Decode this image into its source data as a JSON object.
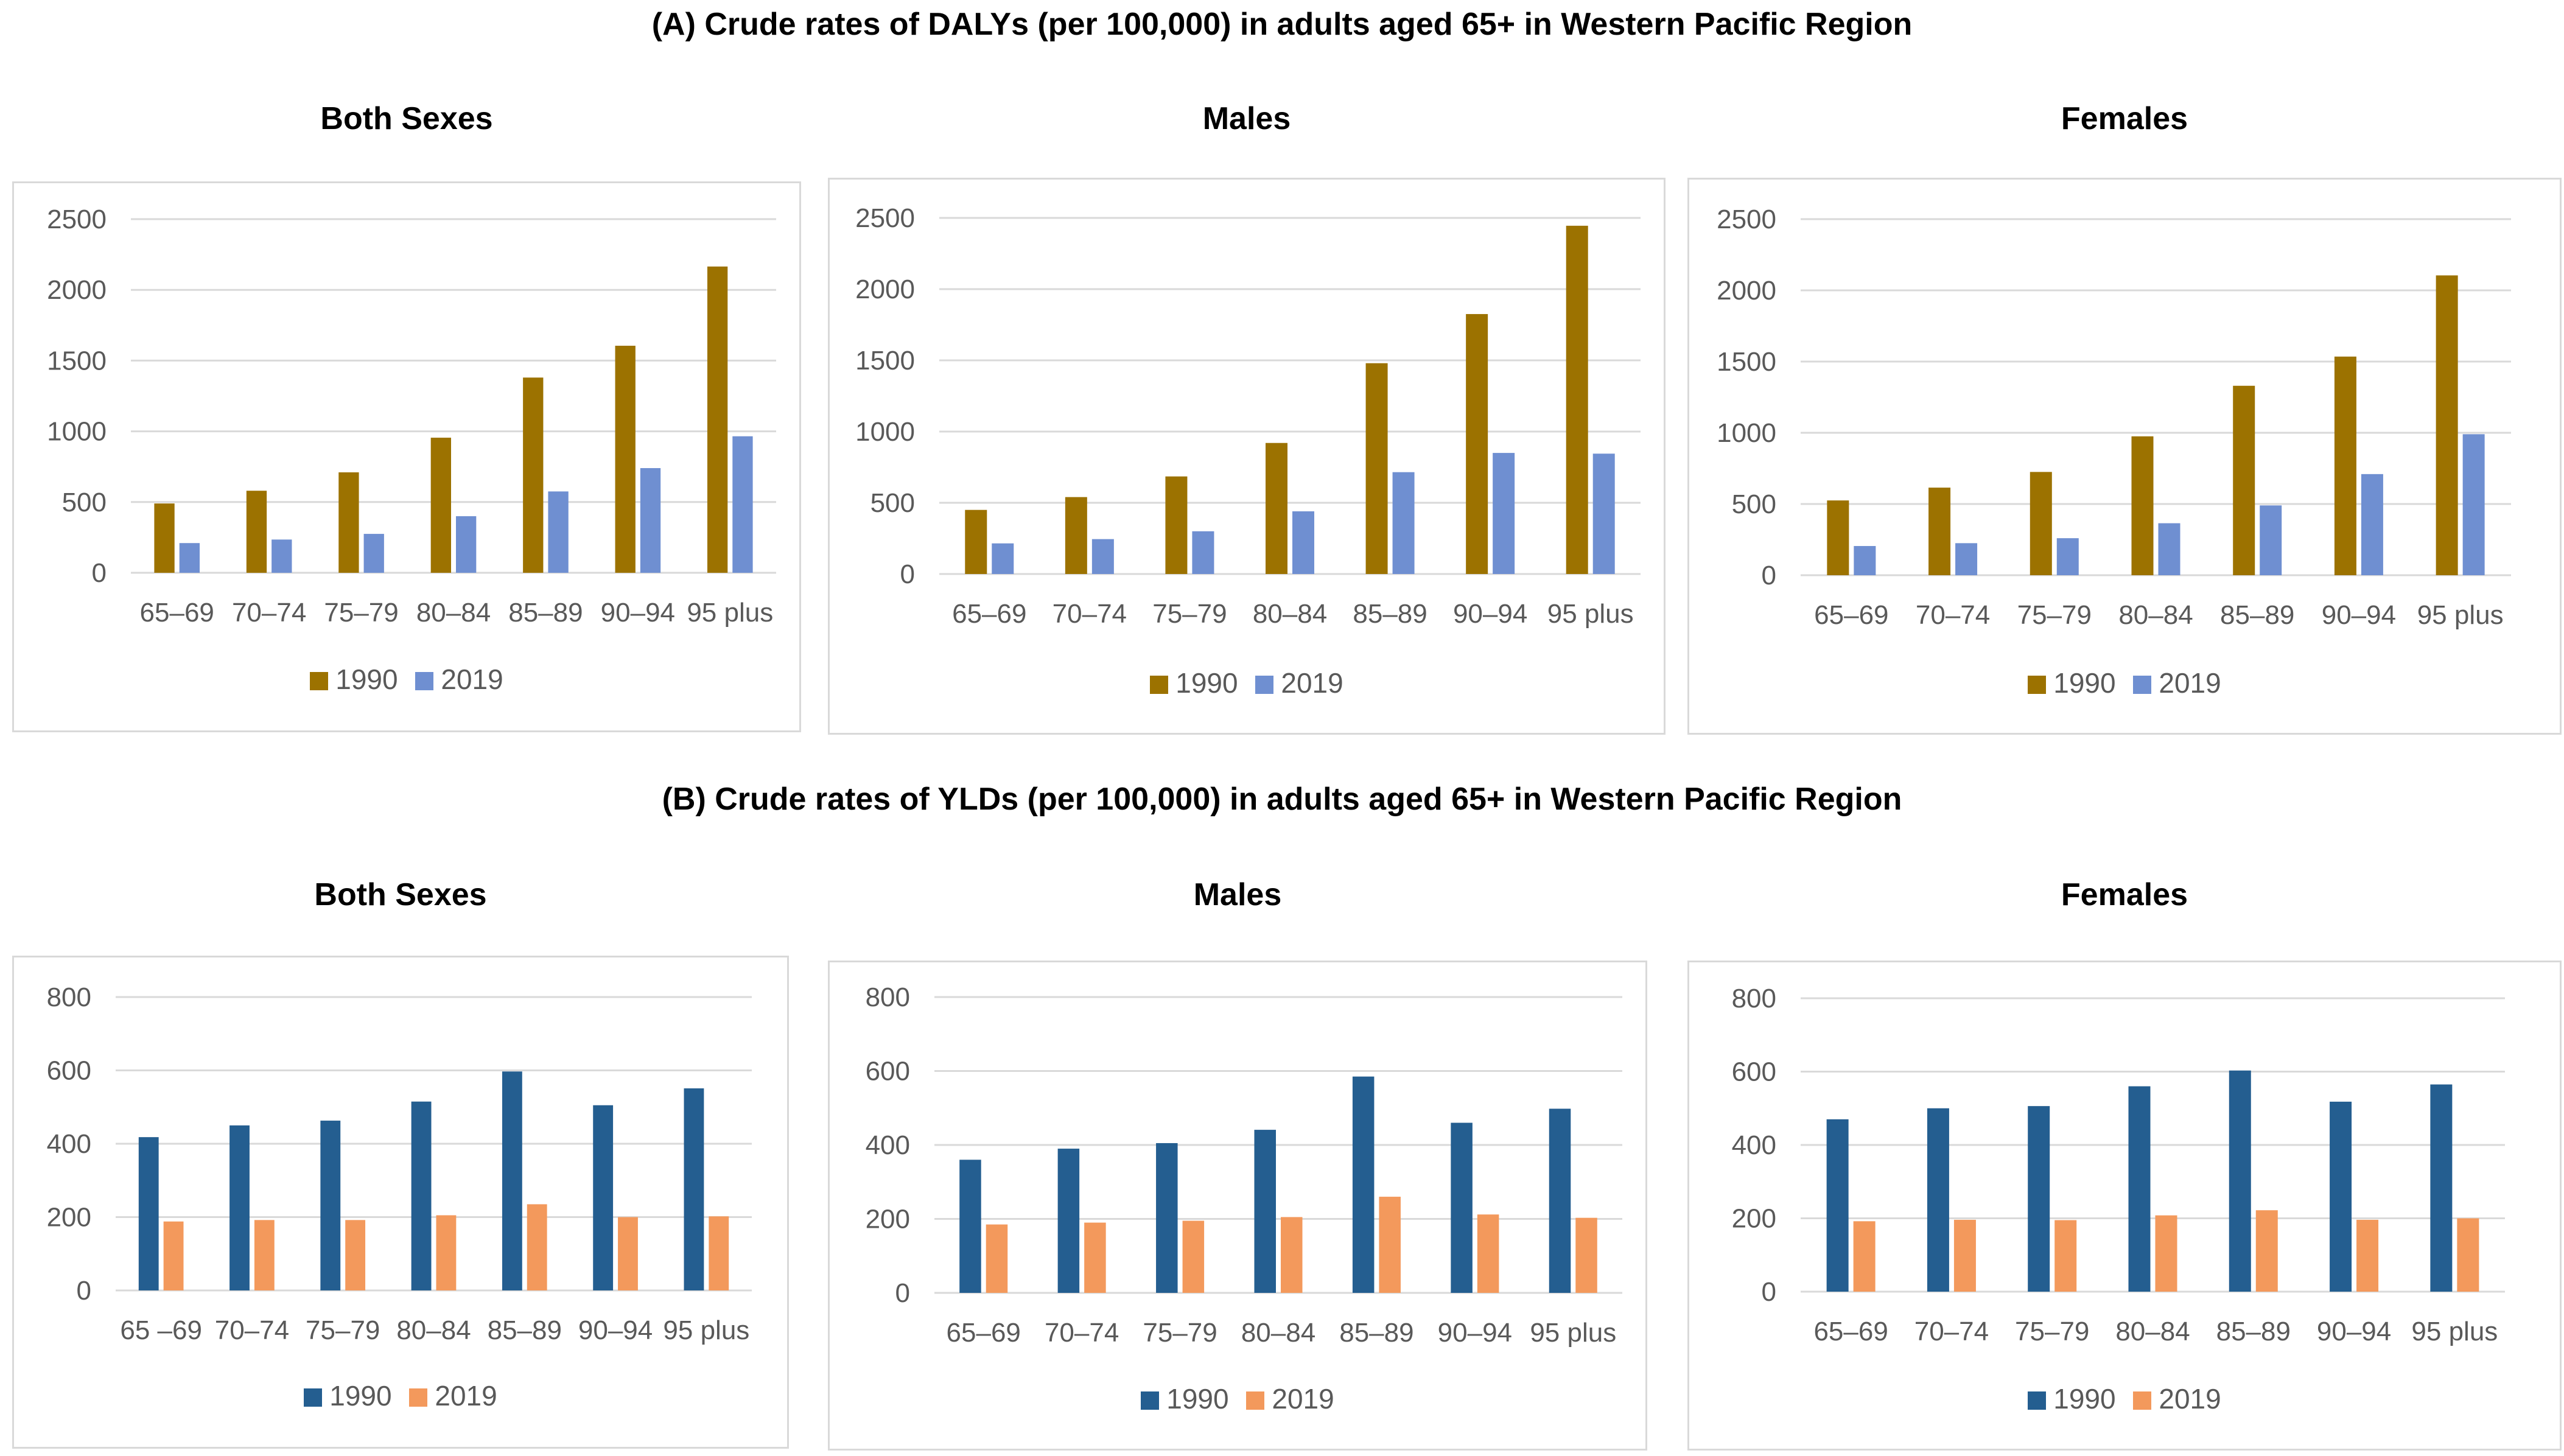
{
  "sections": {
    "a": {
      "title": "(A) Crude rates of DALYs (per 100,000) in adults aged 65+ in Western Pacific Region"
    },
    "b": {
      "title": "(B) Crude rates of YLDs (per 100,000) in adults aged 65+ in Western Pacific Region"
    }
  },
  "chart_data": [
    {
      "id": "a-both",
      "type": "bar",
      "title": "Both Sexes",
      "categories": [
        "65–69",
        "70–74",
        "75–79",
        "80–84",
        "85–89",
        "90–94",
        "95 plus"
      ],
      "series": [
        {
          "name": "1990",
          "color": "#9c7200",
          "values": [
            490,
            580,
            710,
            955,
            1380,
            1605,
            2165
          ]
        },
        {
          "name": "2019",
          "color": "#6f8fd1",
          "values": [
            210,
            235,
            275,
            400,
            575,
            740,
            965
          ]
        }
      ],
      "ylim": [
        0,
        2500
      ],
      "yticks": [
        0,
        500,
        1000,
        1500,
        2000,
        2500
      ],
      "legend": "bottom",
      "grid": true
    },
    {
      "id": "a-males",
      "type": "bar",
      "title": "Males",
      "categories": [
        "65–69",
        "70–74",
        "75–79",
        "80–84",
        "85–89",
        "90–94",
        "95 plus"
      ],
      "series": [
        {
          "name": "1990",
          "color": "#9c7200",
          "values": [
            450,
            540,
            685,
            920,
            1480,
            1825,
            2445
          ]
        },
        {
          "name": "2019",
          "color": "#6f8fd1",
          "values": [
            215,
            245,
            300,
            440,
            715,
            850,
            845
          ]
        }
      ],
      "ylim": [
        0,
        2500
      ],
      "yticks": [
        0,
        500,
        1000,
        1500,
        2000,
        2500
      ],
      "legend": "bottom",
      "grid": true
    },
    {
      "id": "a-females",
      "type": "bar",
      "title": "Females",
      "categories": [
        "65–69",
        "70–74",
        "75–79",
        "80–84",
        "85–89",
        "90–94",
        "95 plus"
      ],
      "series": [
        {
          "name": "1990",
          "color": "#9c7200",
          "values": [
            525,
            615,
            725,
            975,
            1330,
            1535,
            2105
          ]
        },
        {
          "name": "2019",
          "color": "#6f8fd1",
          "values": [
            205,
            225,
            260,
            365,
            490,
            710,
            990
          ]
        }
      ],
      "ylim": [
        0,
        2500
      ],
      "yticks": [
        0,
        500,
        1000,
        1500,
        2000,
        2500
      ],
      "legend": "bottom",
      "grid": true
    },
    {
      "id": "b-both",
      "type": "bar",
      "title": "Both Sexes",
      "categories": [
        "65 –69",
        "70–74",
        "75–79",
        "80–84",
        "85–89",
        "90–94",
        "95 plus"
      ],
      "series": [
        {
          "name": "1990",
          "color": "#245e90",
          "values": [
            418,
            450,
            463,
            515,
            597,
            505,
            551
          ]
        },
        {
          "name": "2019",
          "color": "#f3995c",
          "values": [
            188,
            192,
            192,
            205,
            235,
            200,
            202
          ]
        }
      ],
      "ylim": [
        0,
        800
      ],
      "yticks": [
        0,
        200,
        400,
        600,
        800
      ],
      "legend": "bottom",
      "grid": true
    },
    {
      "id": "b-males",
      "type": "bar",
      "title": "Males",
      "categories": [
        "65–69",
        "70–74",
        "75–79",
        "80–84",
        "85–89",
        "90–94",
        "95 plus"
      ],
      "series": [
        {
          "name": "1990",
          "color": "#245e90",
          "values": [
            360,
            390,
            405,
            441,
            585,
            460,
            498
          ]
        },
        {
          "name": "2019",
          "color": "#f3995c",
          "values": [
            185,
            190,
            195,
            205,
            260,
            212,
            203
          ]
        }
      ],
      "ylim": [
        0,
        800
      ],
      "yticks": [
        0,
        200,
        400,
        600,
        800
      ],
      "legend": "bottom",
      "grid": true
    },
    {
      "id": "b-females",
      "type": "bar",
      "title": "Females",
      "categories": [
        "65–69",
        "70–74",
        "75–79",
        "80–84",
        "85–89",
        "90–94",
        "95 plus"
      ],
      "series": [
        {
          "name": "1990",
          "color": "#245e90",
          "values": [
            470,
            500,
            506,
            560,
            603,
            518,
            565
          ]
        },
        {
          "name": "2019",
          "color": "#f3995c",
          "values": [
            192,
            196,
            195,
            208,
            222,
            196,
            200
          ]
        }
      ],
      "ylim": [
        0,
        800
      ],
      "yticks": [
        0,
        200,
        400,
        600,
        800
      ],
      "legend": "bottom",
      "grid": true
    }
  ]
}
